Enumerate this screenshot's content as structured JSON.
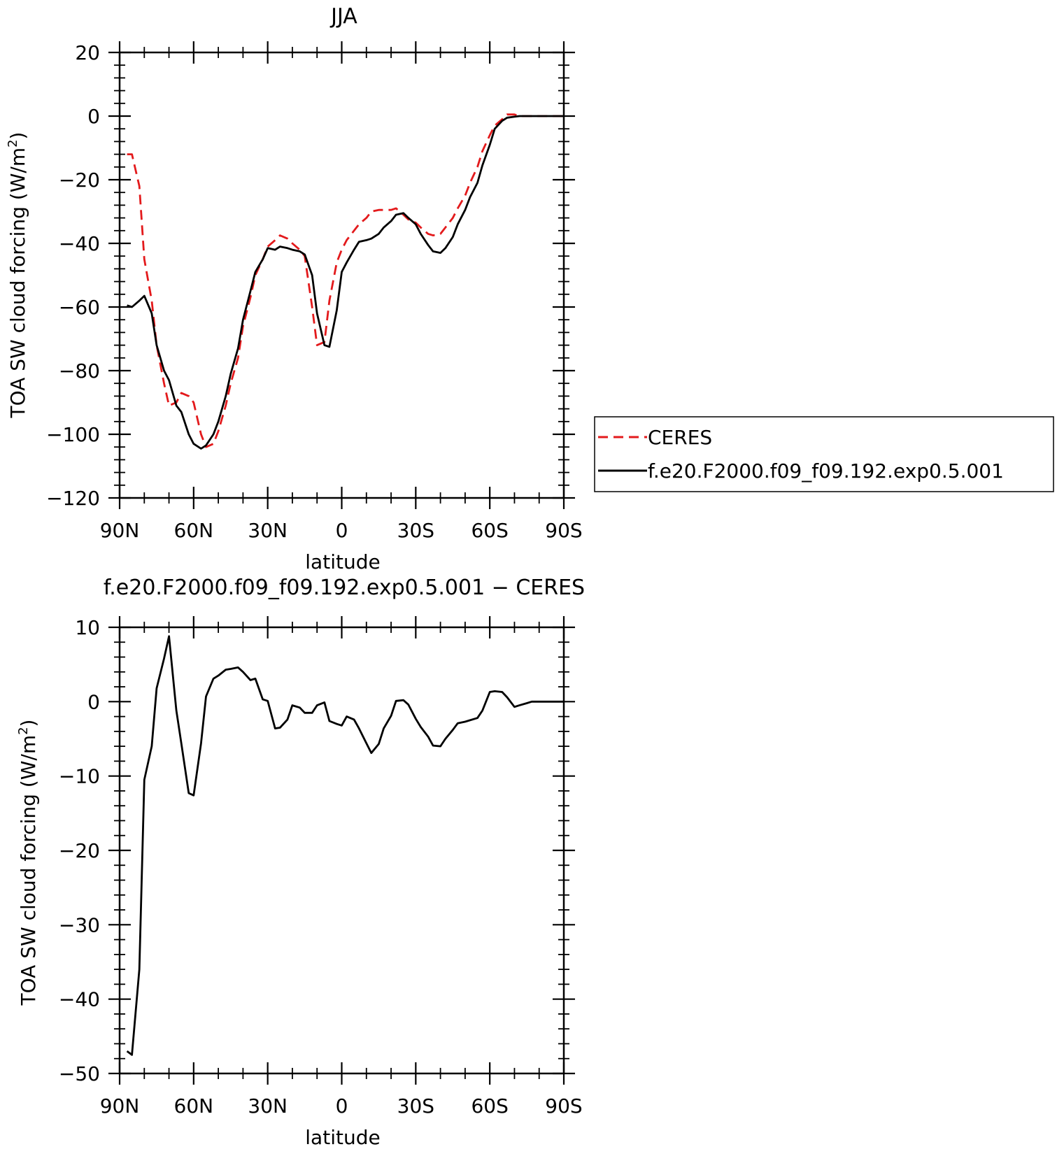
{
  "chart_data": [
    {
      "type": "line",
      "title": "JJA",
      "xlabel": "latitude",
      "ylabel": "TOA SW cloud forcing (W/m",
      "ylabel_sup": "2",
      "ylabel_close": ")",
      "xlim": [
        90,
        -90
      ],
      "ylim": [
        -120,
        20
      ],
      "xticks": [
        90,
        60,
        30,
        0,
        -30,
        -60,
        -90
      ],
      "xtick_labels": [
        "90N",
        "60N",
        "30N",
        "0",
        "30S",
        "60S",
        "90S"
      ],
      "yticks": [
        20,
        0,
        -20,
        -40,
        -60,
        -80,
        -100,
        -120
      ],
      "ytick_labels": [
        "20",
        "0",
        "−20",
        "−40",
        "−60",
        "−80",
        "−100",
        "−120"
      ],
      "legend": {
        "placement": "right",
        "entries": [
          "CERES",
          "f.e20.F2000.f09_f09.192.exp0.5.001"
        ]
      },
      "series": [
        {
          "name": "CERES",
          "color": "#e31a1c",
          "dash": "dashed",
          "x": [
            87,
            85,
            82,
            80,
            77,
            75,
            72,
            70,
            67,
            65,
            62,
            60,
            57,
            55,
            52,
            50,
            47,
            45,
            42,
            40,
            37,
            35,
            32,
            30,
            27,
            25,
            22,
            20,
            17,
            15,
            12,
            10,
            7,
            5,
            2,
            0,
            -2,
            -5,
            -7,
            -10,
            -12,
            -15,
            -17,
            -20,
            -22,
            -25,
            -27,
            -30,
            -32,
            -35,
            -37,
            -40,
            -42,
            -45,
            -47,
            -50,
            -52,
            -55,
            -57,
            -60,
            -62,
            -65,
            -67,
            -70,
            -72,
            -75,
            -77,
            -80,
            -82,
            -85,
            -87,
            -90
          ],
          "y": [
            -12,
            -12,
            -22,
            -45,
            -58,
            -72,
            -84,
            -91,
            -90,
            -87,
            -88,
            -90,
            -100,
            -104,
            -103,
            -99,
            -91,
            -84,
            -76,
            -66,
            -57,
            -50,
            -45,
            -41,
            -39,
            -37.5,
            -38.5,
            -40,
            -42,
            -44,
            -60,
            -72,
            -71,
            -58,
            -46,
            -42,
            -39,
            -36,
            -34,
            -32,
            -30,
            -29.5,
            -29.5,
            -29.5,
            -29,
            -31,
            -32.5,
            -33.5,
            -35,
            -37,
            -37.5,
            -37,
            -35,
            -32,
            -29,
            -25,
            -21,
            -16,
            -11,
            -6,
            -3,
            -1,
            0.5,
            0.5,
            0,
            0,
            0,
            0,
            0,
            0,
            0,
            0
          ]
        },
        {
          "name": "f.e20.F2000.f09_f09.192.exp0.5.001",
          "color": "#000000",
          "dash": "solid",
          "x": [
            87,
            85,
            82,
            80,
            77,
            75,
            72,
            70,
            67,
            65,
            62,
            60,
            57,
            55,
            52,
            50,
            47,
            45,
            42,
            40,
            37,
            35,
            32,
            30,
            27,
            25,
            22,
            20,
            17,
            15,
            12,
            10,
            7,
            5,
            2,
            0,
            -2,
            -5,
            -7,
            -10,
            -12,
            -15,
            -17,
            -20,
            -22,
            -25,
            -27,
            -30,
            -32,
            -35,
            -37,
            -40,
            -42,
            -45,
            -47,
            -50,
            -52,
            -55,
            -57,
            -60,
            -62,
            -65,
            -67,
            -70,
            -72,
            -75,
            -77,
            -80,
            -82,
            -85,
            -87,
            -90
          ],
          "y": [
            -59.5,
            -60,
            -58,
            -56.5,
            -62,
            -72,
            -80,
            -83,
            -91,
            -93,
            -100,
            -103,
            -104.5,
            -103.5,
            -100,
            -96,
            -88,
            -81,
            -73,
            -64,
            -55,
            -49,
            -45,
            -41.5,
            -42,
            -41,
            -41.5,
            -42,
            -42.5,
            -43.5,
            -50,
            -62,
            -72,
            -72.5,
            -61,
            -49,
            -46,
            -42,
            -39.5,
            -39,
            -38.5,
            -37,
            -35,
            -33,
            -31,
            -30.5,
            -32,
            -34,
            -37,
            -40.5,
            -42.5,
            -43,
            -41.5,
            -38,
            -34,
            -29.5,
            -25.5,
            -21,
            -15.5,
            -9,
            -4,
            -1.5,
            -0.5,
            -0.2,
            0,
            0,
            0,
            0,
            0,
            0,
            0,
            0
          ]
        }
      ]
    },
    {
      "type": "line",
      "title": "f.e20.F2000.f09_f09.192.exp0.5.001 − CERES",
      "xlabel": "latitude",
      "ylabel": "TOA SW cloud forcing (W/m",
      "ylabel_sup": "2",
      "ylabel_close": ")",
      "xlim": [
        90,
        -90
      ],
      "ylim": [
        -50,
        10
      ],
      "xticks": [
        90,
        60,
        30,
        0,
        -30,
        -60,
        -90
      ],
      "xtick_labels": [
        "90N",
        "60N",
        "30N",
        "0",
        "30S",
        "60S",
        "90S"
      ],
      "yticks": [
        10,
        0,
        -10,
        -20,
        -30,
        -40,
        -50
      ],
      "ytick_labels": [
        "10",
        "0",
        "−10",
        "−20",
        "−30",
        "−40",
        "−50"
      ],
      "series": [
        {
          "color": "#000000",
          "dash": "solid",
          "x": [
            87,
            85,
            82,
            80,
            77,
            75,
            72,
            70,
            67,
            65,
            62,
            60,
            57,
            55,
            52,
            50,
            47,
            45,
            42,
            40,
            37,
            35,
            32,
            30,
            27,
            25,
            22,
            20,
            17,
            15,
            12,
            10,
            7,
            5,
            2,
            0,
            -2,
            -5,
            -7,
            -10,
            -12,
            -15,
            -17,
            -20,
            -22,
            -25,
            -27,
            -30,
            -32,
            -35,
            -37,
            -40,
            -42,
            -45,
            -47,
            -50,
            -52,
            -55,
            -57,
            -60,
            -62,
            -65,
            -67,
            -70,
            -72,
            -75,
            -77,
            -80,
            -82,
            -85,
            -87,
            -90
          ],
          "y": [
            -47,
            -47.5,
            -36,
            -10.5,
            -6,
            1.8,
            5.8,
            8.8,
            -1.2,
            -5.6,
            -12.3,
            -12.6,
            -5.6,
            0.7,
            3.1,
            3.5,
            4.3,
            4.4,
            4.6,
            4.0,
            2.9,
            3.1,
            0.3,
            0.1,
            -3.6,
            -3.5,
            -2.4,
            -0.5,
            -0.8,
            -1.5,
            -1.5,
            -0.5,
            -0.1,
            -2.6,
            -3.0,
            -3.2,
            -2.0,
            -2.4,
            -3.6,
            -5.6,
            -6.9,
            -5.7,
            -3.6,
            -1.9,
            0.1,
            0.2,
            -0.4,
            -2.3,
            -3.4,
            -4.7,
            -5.9,
            -6.0,
            -5.0,
            -3.8,
            -2.9,
            -2.7,
            -2.5,
            -2.2,
            -1.2,
            1.3,
            1.4,
            1.3,
            0.6,
            -0.7,
            -0.5,
            -0.2,
            0,
            0,
            0,
            0,
            0,
            0
          ]
        }
      ]
    }
  ]
}
